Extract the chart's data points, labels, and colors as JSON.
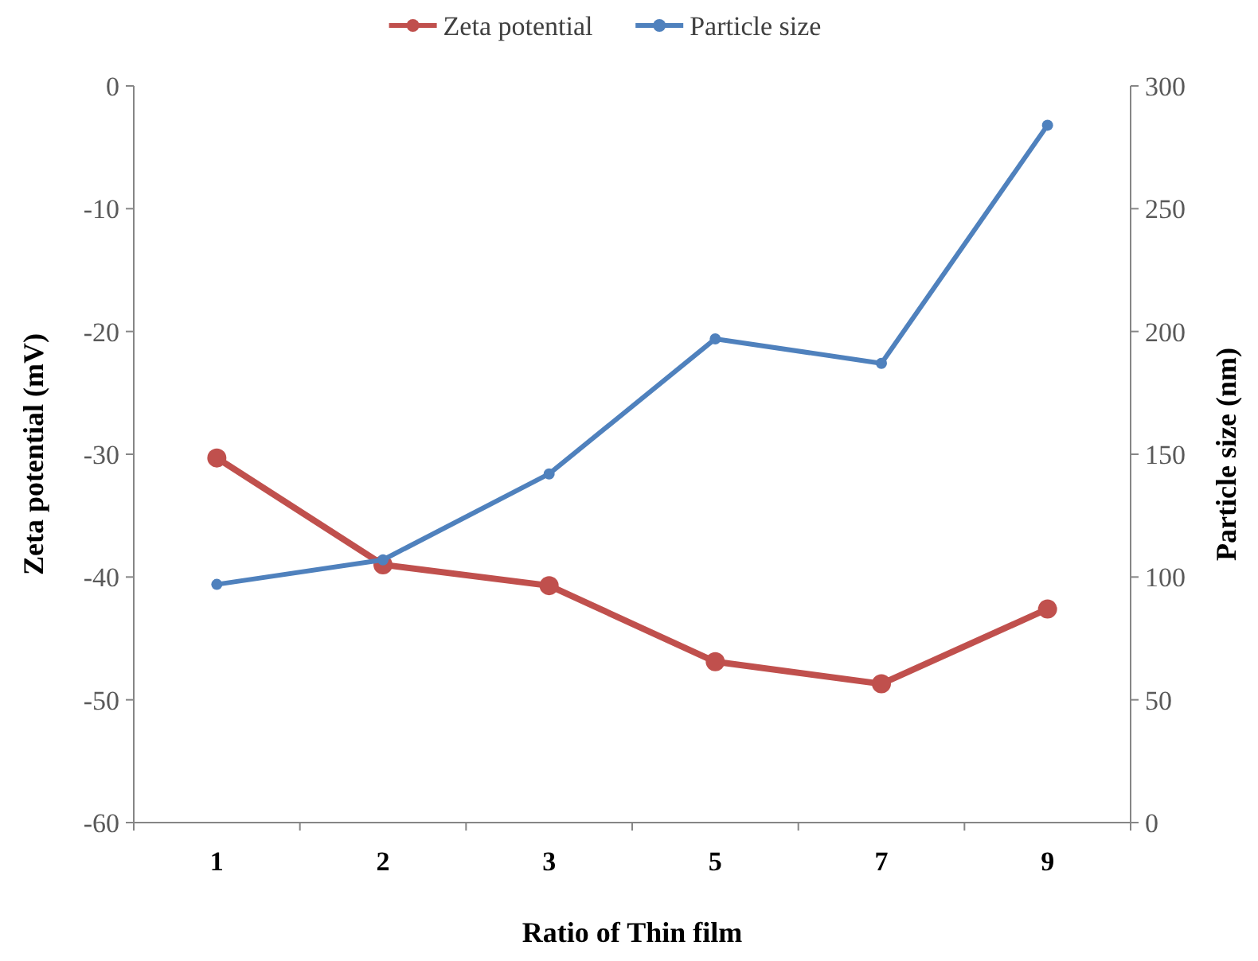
{
  "chart_data": {
    "type": "line",
    "xlabel": "Ratio of Thin film",
    "ylabel": "Zeta potential (mV)",
    "y2label": "Particle size (nm)",
    "categories": [
      "1",
      "2",
      "3",
      "5",
      "7",
      "9"
    ],
    "series": [
      {
        "name": "Zeta potential",
        "color": "#c0504d",
        "values": [
          -30.3,
          -39.0,
          -40.7,
          -46.9,
          -48.7,
          -42.6
        ]
      },
      {
        "name": "Particle size",
        "color": "#4f81bd",
        "axis": "y2",
        "values": [
          97,
          107,
          142,
          197,
          187,
          284
        ]
      }
    ],
    "ylim": [
      -60,
      0
    ],
    "yticks": [
      -60,
      -50,
      -40,
      -30,
      -20,
      -10,
      0
    ],
    "y2lim": [
      0,
      300
    ],
    "y2ticks": [
      0,
      50,
      100,
      150,
      200,
      250,
      300
    ],
    "legend": "top",
    "marker": "circle",
    "line_style": "solid",
    "grid": false
  }
}
